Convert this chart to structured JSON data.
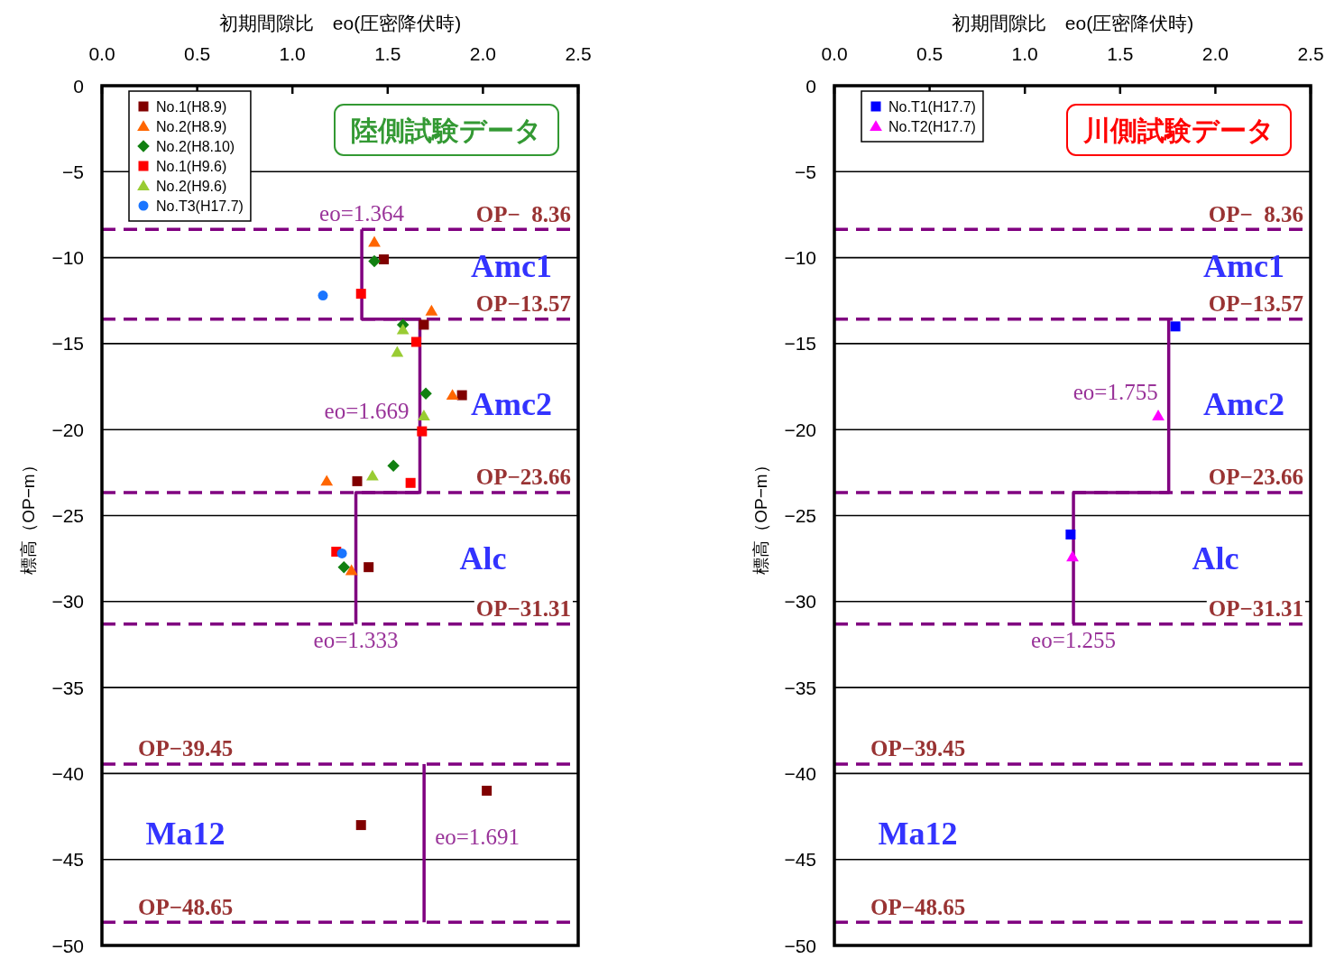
{
  "chart_data": [
    {
      "type": "scatter",
      "title": "陸側試験データ",
      "xlabel": "初期間隙比　eo(圧密降伏時)",
      "ylabel": "標高（OP−m）",
      "xlim": [
        0,
        2.5
      ],
      "xticks": [
        {
          "value": 0,
          "label": "0.0"
        },
        0.5,
        {
          "value": 1,
          "label": "1.0"
        },
        1.5,
        {
          "value": 2,
          "label": "2.0"
        },
        2.5
      ],
      "ylim": [
        -50,
        0
      ],
      "yticks": [
        0,
        -5,
        -10,
        -15,
        -20,
        -25,
        -30,
        -35,
        -40,
        -45,
        -50
      ],
      "grid": "y",
      "legend": "top left",
      "series": [
        {
          "name": "No.1(H8.9)",
          "color": "#800000",
          "marker": "square",
          "x": [
            1.48,
            1.69,
            1.89,
            1.34,
            1.4,
            2.02,
            1.36
          ],
          "values": [
            -10.1,
            -13.9,
            -18.0,
            -23.0,
            -28.0,
            -41.0,
            -43.0
          ]
        },
        {
          "name": "No.2(H8.9)",
          "color": "#ff6600",
          "marker": "triangle",
          "x": [
            1.43,
            1.73,
            1.84,
            1.18,
            1.31
          ],
          "values": [
            -9.1,
            -13.1,
            -18.0,
            -23.0,
            -28.2
          ]
        },
        {
          "name": "No.2(H8.10)",
          "color": "#118011",
          "marker": "diamond",
          "x": [
            1.43,
            1.58,
            1.7,
            1.53,
            1.27
          ],
          "values": [
            -10.2,
            -13.9,
            -17.9,
            -22.1,
            -28.0
          ]
        },
        {
          "name": "No.1(H9.6)",
          "color": "#ff0000",
          "marker": "square",
          "x": [
            1.36,
            1.65,
            1.68,
            1.62,
            1.23
          ],
          "values": [
            -12.1,
            -14.9,
            -20.1,
            -23.1,
            -27.1
          ]
        },
        {
          "name": "No.2(H9.6)",
          "color": "#99cc33",
          "marker": "triangle",
          "x": [
            1.58,
            1.55,
            1.69,
            1.42
          ],
          "values": [
            -14.2,
            -15.5,
            -19.2,
            -22.7
          ]
        },
        {
          "name": "No.T3(H17.7)",
          "color": "#1a75ff",
          "marker": "circle",
          "x": [
            1.16,
            1.26
          ],
          "values": [
            -12.2,
            -27.2
          ]
        },
        {
          "type": "line",
          "color": "#800080",
          "marker": "none",
          "x": [
            1.364,
            1.364,
            1.669,
            1.669,
            1.333,
            1.333
          ],
          "values": [
            -8.36,
            -13.57,
            -13.57,
            -23.66,
            -23.66,
            -31.31
          ]
        },
        {
          "type": "line",
          "color": "#800080",
          "marker": "none",
          "x": [
            1.691,
            1.691
          ],
          "values": [
            -39.45,
            -48.65
          ]
        }
      ],
      "ref_lines": [
        {
          "axis": "y",
          "value": -8.36,
          "label": "OP−  8.36",
          "color": "#800080",
          "line_style": "dashed"
        },
        {
          "axis": "y",
          "value": -13.57,
          "label": "OP−13.57",
          "color": "#800080",
          "line_style": "dashed"
        },
        {
          "axis": "y",
          "value": -23.66,
          "label": "OP−23.66",
          "color": "#800080",
          "line_style": "dashed"
        },
        {
          "axis": "y",
          "value": -31.31,
          "label": "OP−31.31",
          "color": "#800080",
          "line_style": "dashed"
        },
        {
          "axis": "y",
          "value": -39.45,
          "label": "OP−39.45",
          "color": "#800080",
          "line_style": "dashed"
        },
        {
          "axis": "y",
          "value": -48.65,
          "label": "OP−48.65",
          "color": "#800080",
          "line_style": "dashed"
        }
      ],
      "annotations": [
        "Amc1",
        "Amc2",
        "Alc",
        "Ma12",
        {
          "text": "eo=1.364",
          "x": 1.364,
          "y": -8.36
        },
        {
          "text": "eo=1.669",
          "x": 1.669,
          "y": -18.9
        },
        {
          "text": "eo=1.333",
          "x": 1.333,
          "y": -31.31
        },
        {
          "text": "eo=1.691",
          "x": 1.691,
          "y": -43.7
        }
      ]
    },
    {
      "type": "scatter",
      "title": "川側試験データ",
      "xlabel": "初期間隙比　eo(圧密降伏時)",
      "ylabel": "標高（OP−m）",
      "xlim": [
        0,
        2.5
      ],
      "xticks": [
        {
          "value": 0,
          "label": "0.0"
        },
        0.5,
        {
          "value": 1,
          "label": "1.0"
        },
        1.5,
        {
          "value": 2,
          "label": "2.0"
        },
        2.5
      ],
      "ylim": [
        -50,
        0
      ],
      "yticks": [
        0,
        -5,
        -10,
        -15,
        -20,
        -25,
        -30,
        -35,
        -40,
        -45,
        -50
      ],
      "grid": "y",
      "legend": "top left",
      "series": [
        {
          "name": "No.T1(H17.7)",
          "color": "#0000ff",
          "marker": "square",
          "x": [
            1.79,
            1.24
          ],
          "values": [
            -14.0,
            -26.1
          ]
        },
        {
          "name": "No.T2(H17.7)",
          "color": "#ff00ff",
          "marker": "triangle",
          "x": [
            1.7,
            1.25
          ],
          "values": [
            -19.2,
            -27.4
          ]
        },
        {
          "type": "line",
          "color": "#800080",
          "marker": "none",
          "x": [
            1.755,
            1.755,
            1.255,
            1.255
          ],
          "values": [
            -13.57,
            -23.66,
            -23.66,
            -31.31
          ]
        }
      ],
      "ref_lines": [
        {
          "axis": "y",
          "value": -8.36,
          "label": "OP−  8.36",
          "color": "#800080",
          "line_style": "dashed"
        },
        {
          "axis": "y",
          "value": -13.57,
          "label": "OP−13.57",
          "color": "#800080",
          "line_style": "dashed"
        },
        {
          "axis": "y",
          "value": -23.66,
          "label": "OP−23.66",
          "color": "#800080",
          "line_style": "dashed"
        },
        {
          "axis": "y",
          "value": -31.31,
          "label": "OP−31.31",
          "color": "#800080",
          "line_style": "dashed"
        },
        {
          "axis": "y",
          "value": -39.45,
          "label": "OP−39.45",
          "color": "#800080",
          "line_style": "dashed"
        },
        {
          "axis": "y",
          "value": -48.65,
          "label": "OP−48.65",
          "color": "#800080",
          "line_style": "dashed"
        }
      ],
      "annotations": [
        "Amc1",
        "Amc2",
        "Alc",
        "Ma12",
        {
          "text": "eo=1.755",
          "x": 1.755,
          "y": -17.8
        },
        {
          "text": "eo=1.255",
          "x": 1.255,
          "y": -31.31
        }
      ]
    }
  ]
}
